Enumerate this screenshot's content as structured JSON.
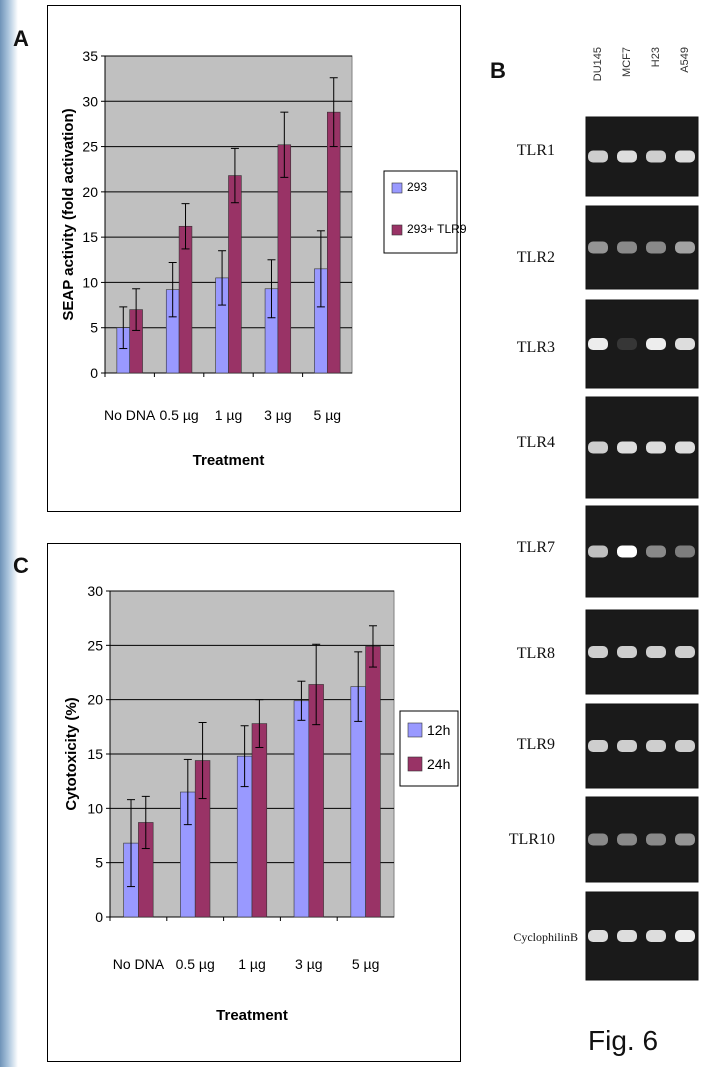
{
  "panels": {
    "a": "A",
    "b": "B",
    "c": "C"
  },
  "figure_label": "Fig. 6",
  "chart_data": [
    {
      "type": "bar",
      "panel": "A",
      "title": "",
      "xlabel": "Treatment",
      "ylabel": "SEAP activity (fold activation)",
      "categories": [
        "No DNA",
        "0.5 µg",
        "1 µg",
        "3 µg",
        "5 µg"
      ],
      "ylim": [
        0,
        35
      ],
      "yticks": [
        0,
        5,
        10,
        15,
        20,
        25,
        30,
        35
      ],
      "grid": true,
      "legend_position": "right",
      "series": [
        {
          "name": "293",
          "color": "#9999ff",
          "values": [
            5,
            9.2,
            10.5,
            9.3,
            11.5
          ],
          "errors": [
            2.3,
            3.0,
            3.0,
            3.2,
            4.2
          ]
        },
        {
          "name": "293+ TLR9",
          "color": "#993366",
          "values": [
            7,
            16.2,
            21.8,
            25.2,
            28.8
          ],
          "errors": [
            2.3,
            2.5,
            3.0,
            3.6,
            3.8
          ]
        }
      ]
    },
    {
      "type": "bar",
      "panel": "C",
      "title": "",
      "xlabel": "Treatment",
      "ylabel": "Cytotoxicity (%)",
      "categories": [
        "No DNA",
        "0.5 µg",
        "1 µg",
        "3 µg",
        "5 µg"
      ],
      "ylim": [
        0,
        30
      ],
      "yticks": [
        0,
        5,
        10,
        15,
        20,
        25,
        30
      ],
      "grid": true,
      "legend_position": "right",
      "series": [
        {
          "name": "12h",
          "color": "#9999ff",
          "values": [
            6.8,
            11.5,
            14.8,
            19.9,
            21.2
          ],
          "errors": [
            4.0,
            3.0,
            2.8,
            1.8,
            3.2
          ]
        },
        {
          "name": "24h",
          "color": "#993366",
          "values": [
            8.7,
            14.4,
            17.8,
            21.4,
            24.9
          ],
          "errors": [
            2.4,
            3.5,
            2.2,
            3.7,
            1.9
          ]
        }
      ]
    }
  ],
  "gel": {
    "lanes": [
      "DU145",
      "MCF7",
      "H23",
      "A549"
    ],
    "rows": [
      {
        "gene": "TLR1",
        "intensities": [
          0.85,
          0.9,
          0.85,
          0.9
        ]
      },
      {
        "gene": "TLR2",
        "intensities": [
          0.65,
          0.6,
          0.6,
          0.7
        ]
      },
      {
        "gene": "TLR3",
        "intensities": [
          0.95,
          0.15,
          0.95,
          0.9
        ]
      },
      {
        "gene": "TLR4",
        "intensities": [
          0.85,
          0.9,
          0.9,
          0.9
        ]
      },
      {
        "gene": "TLR7",
        "intensities": [
          0.8,
          1.0,
          0.6,
          0.55
        ]
      },
      {
        "gene": "TLR8",
        "intensities": [
          0.85,
          0.85,
          0.85,
          0.85
        ]
      },
      {
        "gene": "TLR9",
        "intensities": [
          0.85,
          0.85,
          0.85,
          0.85
        ]
      },
      {
        "gene": "TLR10",
        "intensities": [
          0.6,
          0.6,
          0.6,
          0.65
        ]
      },
      {
        "gene": "CyclophilinB",
        "intensities": [
          0.9,
          0.9,
          0.9,
          0.95
        ]
      }
    ]
  }
}
